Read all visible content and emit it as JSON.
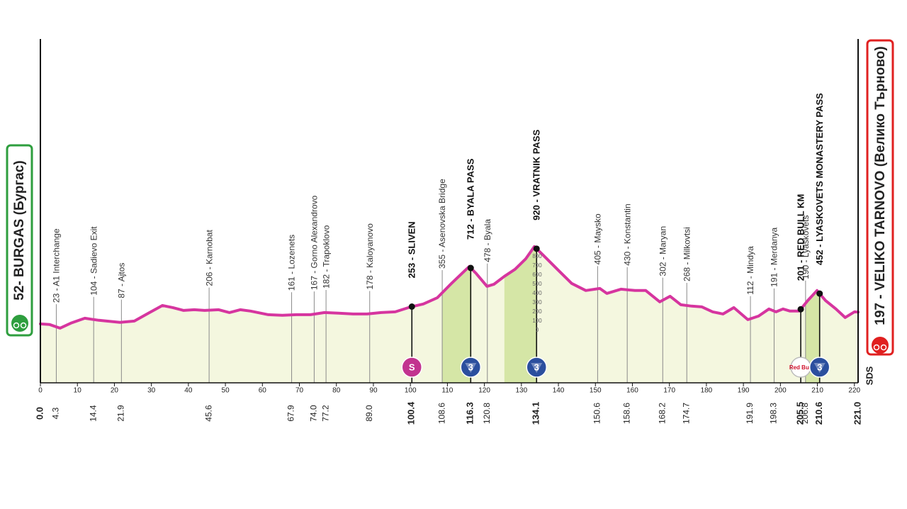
{
  "chart_data": {
    "type": "area",
    "x": [
      0.0,
      2.5,
      5.3,
      8.2,
      12.0,
      15.8,
      21.5,
      25.4,
      29.2,
      33.0,
      35.8,
      38.7,
      41.6,
      44.4,
      48.2,
      51.1,
      54.0,
      56.8,
      61.6,
      65.4,
      69.2,
      73.0,
      76.8,
      80.6,
      84.5,
      88.3,
      92.1,
      95.9,
      100.1,
      103.5,
      107.3,
      111.1,
      115.9,
      117.8,
      120.7,
      122.6,
      125.4,
      128.3,
      131.2,
      133.5,
      135.9,
      139.7,
      143.6,
      147.4,
      151.2,
      153.1,
      156.9,
      160.7,
      163.6,
      167.4,
      170.2,
      173.1,
      176.0,
      178.8,
      181.7,
      184.5,
      187.4,
      191.2,
      194.1,
      196.9,
      198.8,
      200.7,
      202.6,
      205.1,
      207.4,
      209.9,
      212.2,
      215.0,
      217.5,
      220.0,
      221.0
    ],
    "values": [
      69,
      62,
      23,
      77,
      131,
      108,
      85,
      100,
      185,
      269,
      246,
      215,
      223,
      215,
      223,
      192,
      223,
      208,
      169,
      162,
      169,
      169,
      192,
      185,
      177,
      177,
      192,
      200,
      254,
      285,
      354,
      508,
      692,
      615,
      477,
      500,
      585,
      662,
      777,
      908,
      815,
      662,
      508,
      431,
      454,
      400,
      446,
      431,
      431,
      308,
      369,
      277,
      262,
      254,
      200,
      177,
      246,
      115,
      154,
      231,
      200,
      231,
      208,
      208,
      323,
      431,
      323,
      231,
      138,
      200,
      197
    ],
    "color": "#d6359f",
    "fill": "#f4f7df",
    "xlim": [
      0,
      221
    ],
    "ylim": [
      -570,
      3160
    ],
    "xticks": [
      0,
      10,
      20,
      30,
      40,
      50,
      60,
      70,
      80,
      90,
      100,
      110,
      120,
      130,
      140,
      150,
      160,
      170,
      180,
      190,
      200,
      210,
      220
    ],
    "yticks": [
      0,
      100,
      200,
      300,
      400,
      500,
      600,
      700,
      800
    ],
    "start": {
      "label": "52- BURGAS (Бургас)",
      "km": {
        "value": 0,
        "label": "0.0"
      },
      "color": "#2e9e3e"
    },
    "finish": {
      "label": "197 - VELIKO TARNOVO (Велико Търново)",
      "km": {
        "value": 221,
        "label": "221.0"
      },
      "color": "#e02020"
    },
    "climbs": [
      {
        "from": 108.6,
        "to": 116.3,
        "color": "#d5e6a6"
      },
      {
        "from": 125.4,
        "to": 134.1,
        "color": "#d5e6a6"
      },
      {
        "from": 206.8,
        "to": 210.6,
        "color": "#d5e6a6"
      }
    ],
    "waypoints": [
      {
        "label": "23 - A1 Interchange",
        "km": 4.3
      },
      {
        "label": "104 - Sadievo Exit",
        "km": 14.4
      },
      {
        "label": "87 - Ajtos",
        "km": 21.9
      },
      {
        "label": "206 - Karnobat",
        "km": 45.6
      },
      {
        "label": "161 - Lozenets",
        "km": 67.9
      },
      {
        "label": "167 - Gorno Alexandrovo",
        "km": {
          "value": 74.0,
          "label": "74.0"
        }
      },
      {
        "label": "182 - Trapoklovo",
        "km": 77.2
      },
      {
        "label": "178 - Kaloyanovo",
        "km": {
          "value": 89.0,
          "label": "89.0"
        }
      },
      {
        "label": "253 - SLIVEN",
        "km": 100.4,
        "major": true,
        "badge": "S",
        "badge_color": "#c2338f"
      },
      {
        "label": "355 - Asenovska Bridge",
        "km": 108.6
      },
      {
        "label": "712 - BYALA PASS",
        "km": 116.3,
        "major": true,
        "badge": "3",
        "badge_color": "#2b4f9e"
      },
      {
        "label": "478 - Byala",
        "km": 120.8
      },
      {
        "label": "920 - VRATNIK PASS",
        "km": 134.1,
        "major": true,
        "badge": "3",
        "badge_color": "#2b4f9e"
      },
      {
        "label": "405 - Maysko",
        "km": 150.6
      },
      {
        "label": "430 - Konstantin",
        "km": 158.6
      },
      {
        "label": "302 - Maryan",
        "km": 168.2
      },
      {
        "label": "268 - Milkovtsi",
        "km": 174.7
      },
      {
        "label": "112 - Mindya",
        "km": 191.9
      },
      {
        "label": "191 - Merdanya",
        "km": 198.3
      },
      {
        "label": "201 - RED BULL KM",
        "km": 205.5,
        "major": true,
        "badge": "Red Bull",
        "badge_color": "#ffffff"
      },
      {
        "label": "190 - Lyaskovets",
        "km": 206.8
      },
      {
        "label": "452 - LYASKOVETS MONASTERY PASS",
        "km": 210.6,
        "major": true,
        "badge": "3",
        "badge_color": "#2b4f9e"
      }
    ],
    "logo": "SDS"
  }
}
